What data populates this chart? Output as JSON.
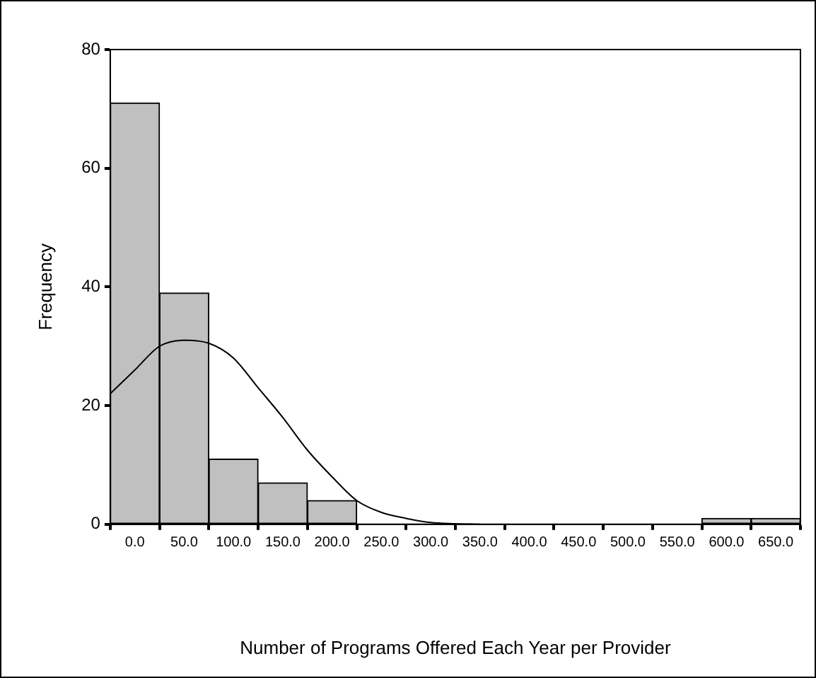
{
  "chart_data": {
    "type": "histogram",
    "xlabel": "Number of Programs Offered Each Year per Provider",
    "ylabel": "Frequency",
    "bins": [
      -25,
      25,
      75,
      125,
      175,
      225,
      275,
      325,
      375,
      425,
      475,
      525,
      575,
      625,
      675
    ],
    "values": [
      71,
      39,
      11,
      7,
      4,
      0,
      0,
      0,
      0,
      0,
      0,
      0,
      1,
      1
    ],
    "color": "#c0c0c0",
    "series": [
      {
        "type": "line",
        "color": "#000000",
        "x": [
          -25,
          0,
          25,
          50,
          75,
          100,
          125,
          150,
          175,
          200,
          225,
          250,
          275,
          300,
          325,
          350
        ],
        "values": [
          22,
          26,
          30,
          31,
          30.5,
          28,
          23,
          18,
          12.5,
          8,
          4,
          2,
          1,
          0.3,
          0.1,
          0
        ]
      }
    ],
    "xlim": [
      -25,
      675
    ],
    "xticks": [
      {
        "value": 0,
        "label": "0.0"
      },
      {
        "value": 50,
        "label": "50.0"
      },
      {
        "value": 100,
        "label": "100.0"
      },
      {
        "value": 150,
        "label": "150.0"
      },
      {
        "value": 200,
        "label": "200.0"
      },
      {
        "value": 250,
        "label": "250.0"
      },
      {
        "value": 300,
        "label": "300.0"
      },
      {
        "value": 350,
        "label": "350.0"
      },
      {
        "value": 400,
        "label": "400.0"
      },
      {
        "value": 450,
        "label": "450.0"
      },
      {
        "value": 500,
        "label": "500.0"
      },
      {
        "value": 550,
        "label": "550.0"
      },
      {
        "value": 600,
        "label": "600.0"
      },
      {
        "value": 650,
        "label": "650.0"
      }
    ],
    "ylim": [
      0,
      80
    ],
    "yticks": [
      0,
      20,
      40,
      60,
      80
    ],
    "grid": false,
    "legend": false,
    "marker": "none",
    "line_style": "solid"
  }
}
